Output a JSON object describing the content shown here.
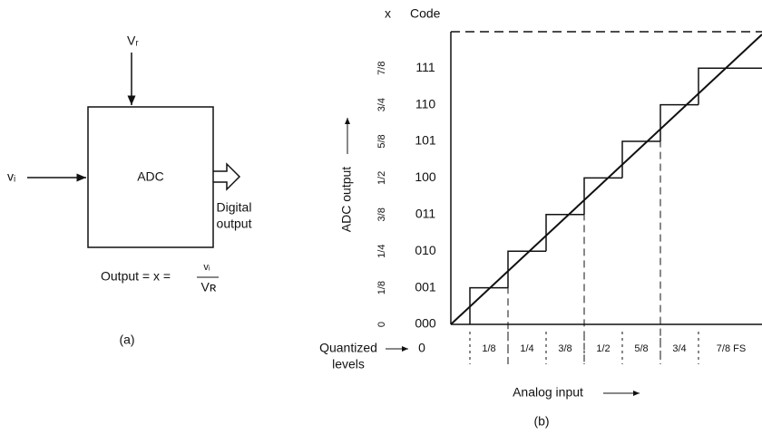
{
  "panel_a": {
    "reference": "Vᵣ",
    "input": "vᵢ",
    "block": "ADC",
    "output_line1": "Digital",
    "output_line2": "output",
    "equation": "Output = x =",
    "numerator": "vᵢ",
    "denominator": "Vʀ",
    "caption": "(a)"
  },
  "panel_b": {
    "x_symbol": "x",
    "code_title": "Code",
    "y_axis_label": "ADC output",
    "codes": [
      "000",
      "001",
      "010",
      "011",
      "100",
      "101",
      "110",
      "111"
    ],
    "fractions": [
      "0",
      "1/8",
      "1/4",
      "3/8",
      "1/2",
      "5/8",
      "3/4",
      "7/8"
    ],
    "levels_label_line1": "Quantized",
    "levels_label_line2": "levels",
    "levels": [
      "0",
      "1/8",
      "1/4",
      "3/8",
      "1/2",
      "5/8",
      "3/4",
      "7/8 FS"
    ],
    "x_axis_label": "Analog input",
    "caption": "(b)"
  }
}
